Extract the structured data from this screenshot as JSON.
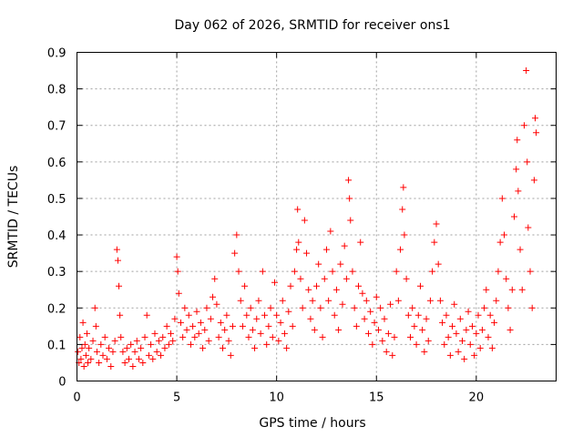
{
  "chart_data": {
    "type": "scatter",
    "title": "Day 062 of 2026, SRMTID for receiver ons1",
    "xlabel": "GPS time / hours",
    "ylabel": "SRMTID / TECUs",
    "xlim": [
      0,
      24
    ],
    "ylim": [
      0,
      0.9
    ],
    "xticks": [
      0,
      5,
      10,
      15,
      20
    ],
    "yticks": [
      0,
      0.1,
      0.2,
      0.3,
      0.4,
      0.5,
      0.6,
      0.7,
      0.8,
      0.9
    ],
    "xtick_labels": [
      "0",
      "5",
      "10",
      "15",
      "20"
    ],
    "ytick_labels": [
      "0",
      "0.1",
      "0.2",
      "0.3",
      "0.4",
      "0.5",
      "0.6",
      "0.7",
      "0.8",
      "0.9"
    ],
    "grid": true,
    "marker": "+",
    "color": "#ff0000",
    "series": [
      {
        "name": "SRMTID",
        "points": [
          [
            0.05,
            0.08
          ],
          [
            0.1,
            0.05
          ],
          [
            0.15,
            0.12
          ],
          [
            0.2,
            0.06
          ],
          [
            0.25,
            0.09
          ],
          [
            0.3,
            0.16
          ],
          [
            0.35,
            0.04
          ],
          [
            0.4,
            0.1
          ],
          [
            0.45,
            0.07
          ],
          [
            0.5,
            0.13
          ],
          [
            0.55,
            0.05
          ],
          [
            0.6,
            0.09
          ],
          [
            0.7,
            0.06
          ],
          [
            0.8,
            0.11
          ],
          [
            0.9,
            0.2
          ],
          [
            0.95,
            0.15
          ],
          [
            1.0,
            0.08
          ],
          [
            1.1,
            0.05
          ],
          [
            1.2,
            0.1
          ],
          [
            1.3,
            0.07
          ],
          [
            1.4,
            0.12
          ],
          [
            1.5,
            0.06
          ],
          [
            1.6,
            0.09
          ],
          [
            1.7,
            0.04
          ],
          [
            1.8,
            0.08
          ],
          [
            1.9,
            0.11
          ],
          [
            2.0,
            0.36
          ],
          [
            2.05,
            0.33
          ],
          [
            2.1,
            0.26
          ],
          [
            2.15,
            0.18
          ],
          [
            2.2,
            0.12
          ],
          [
            2.3,
            0.08
          ],
          [
            2.4,
            0.05
          ],
          [
            2.5,
            0.09
          ],
          [
            2.6,
            0.06
          ],
          [
            2.7,
            0.1
          ],
          [
            2.8,
            0.04
          ],
          [
            2.9,
            0.08
          ],
          [
            3.0,
            0.11
          ],
          [
            3.1,
            0.06
          ],
          [
            3.2,
            0.09
          ],
          [
            3.3,
            0.05
          ],
          [
            3.4,
            0.12
          ],
          [
            3.5,
            0.18
          ],
          [
            3.6,
            0.07
          ],
          [
            3.7,
            0.1
          ],
          [
            3.8,
            0.06
          ],
          [
            3.9,
            0.13
          ],
          [
            4.0,
            0.08
          ],
          [
            4.1,
            0.11
          ],
          [
            4.2,
            0.07
          ],
          [
            4.3,
            0.12
          ],
          [
            4.4,
            0.09
          ],
          [
            4.5,
            0.15
          ],
          [
            4.6,
            0.1
          ],
          [
            4.7,
            0.13
          ],
          [
            4.8,
            0.11
          ],
          [
            4.9,
            0.17
          ],
          [
            5.0,
            0.34
          ],
          [
            5.05,
            0.3
          ],
          [
            5.1,
            0.24
          ],
          [
            5.2,
            0.16
          ],
          [
            5.3,
            0.12
          ],
          [
            5.4,
            0.2
          ],
          [
            5.5,
            0.14
          ],
          [
            5.6,
            0.18
          ],
          [
            5.7,
            0.1
          ],
          [
            5.8,
            0.15
          ],
          [
            5.9,
            0.12
          ],
          [
            6.0,
            0.19
          ],
          [
            6.1,
            0.13
          ],
          [
            6.2,
            0.16
          ],
          [
            6.3,
            0.09
          ],
          [
            6.4,
            0.14
          ],
          [
            6.5,
            0.2
          ],
          [
            6.6,
            0.11
          ],
          [
            6.7,
            0.17
          ],
          [
            6.8,
            0.23
          ],
          [
            6.9,
            0.28
          ],
          [
            7.0,
            0.21
          ],
          [
            7.1,
            0.12
          ],
          [
            7.2,
            0.16
          ],
          [
            7.3,
            0.09
          ],
          [
            7.4,
            0.14
          ],
          [
            7.5,
            0.18
          ],
          [
            7.6,
            0.11
          ],
          [
            7.7,
            0.07
          ],
          [
            7.8,
            0.15
          ],
          [
            7.9,
            0.35
          ],
          [
            8.0,
            0.4
          ],
          [
            8.1,
            0.3
          ],
          [
            8.2,
            0.22
          ],
          [
            8.3,
            0.15
          ],
          [
            8.4,
            0.26
          ],
          [
            8.5,
            0.18
          ],
          [
            8.6,
            0.12
          ],
          [
            8.7,
            0.2
          ],
          [
            8.8,
            0.14
          ],
          [
            8.9,
            0.09
          ],
          [
            9.0,
            0.17
          ],
          [
            9.1,
            0.22
          ],
          [
            9.2,
            0.13
          ],
          [
            9.3,
            0.3
          ],
          [
            9.4,
            0.18
          ],
          [
            9.5,
            0.1
          ],
          [
            9.6,
            0.15
          ],
          [
            9.7,
            0.2
          ],
          [
            9.8,
            0.12
          ],
          [
            9.9,
            0.27
          ],
          [
            10.0,
            0.18
          ],
          [
            10.1,
            0.11
          ],
          [
            10.2,
            0.16
          ],
          [
            10.3,
            0.22
          ],
          [
            10.4,
            0.13
          ],
          [
            10.5,
            0.09
          ],
          [
            10.6,
            0.19
          ],
          [
            10.7,
            0.26
          ],
          [
            10.8,
            0.15
          ],
          [
            10.9,
            0.3
          ],
          [
            11.0,
            0.36
          ],
          [
            11.05,
            0.47
          ],
          [
            11.1,
            0.38
          ],
          [
            11.2,
            0.28
          ],
          [
            11.3,
            0.2
          ],
          [
            11.4,
            0.44
          ],
          [
            11.5,
            0.35
          ],
          [
            11.6,
            0.25
          ],
          [
            11.7,
            0.17
          ],
          [
            11.8,
            0.22
          ],
          [
            11.9,
            0.14
          ],
          [
            12.0,
            0.26
          ],
          [
            12.1,
            0.32
          ],
          [
            12.2,
            0.2
          ],
          [
            12.3,
            0.12
          ],
          [
            12.4,
            0.28
          ],
          [
            12.5,
            0.36
          ],
          [
            12.6,
            0.22
          ],
          [
            12.7,
            0.41
          ],
          [
            12.8,
            0.3
          ],
          [
            12.9,
            0.18
          ],
          [
            13.0,
            0.25
          ],
          [
            13.1,
            0.14
          ],
          [
            13.2,
            0.32
          ],
          [
            13.3,
            0.21
          ],
          [
            13.4,
            0.37
          ],
          [
            13.5,
            0.28
          ],
          [
            13.6,
            0.55
          ],
          [
            13.65,
            0.5
          ],
          [
            13.7,
            0.44
          ],
          [
            13.8,
            0.3
          ],
          [
            13.9,
            0.2
          ],
          [
            14.0,
            0.15
          ],
          [
            14.1,
            0.26
          ],
          [
            14.2,
            0.38
          ],
          [
            14.3,
            0.24
          ],
          [
            14.4,
            0.17
          ],
          [
            14.5,
            0.22
          ],
          [
            14.6,
            0.13
          ],
          [
            14.7,
            0.19
          ],
          [
            14.8,
            0.1
          ],
          [
            14.9,
            0.16
          ],
          [
            15.0,
            0.23
          ],
          [
            15.1,
            0.14
          ],
          [
            15.2,
            0.2
          ],
          [
            15.3,
            0.11
          ],
          [
            15.4,
            0.17
          ],
          [
            15.5,
            0.08
          ],
          [
            15.6,
            0.13
          ],
          [
            15.7,
            0.21
          ],
          [
            15.8,
            0.07
          ],
          [
            15.9,
            0.12
          ],
          [
            16.0,
            0.3
          ],
          [
            16.1,
            0.22
          ],
          [
            16.2,
            0.36
          ],
          [
            16.3,
            0.47
          ],
          [
            16.35,
            0.53
          ],
          [
            16.4,
            0.4
          ],
          [
            16.5,
            0.28
          ],
          [
            16.6,
            0.18
          ],
          [
            16.7,
            0.12
          ],
          [
            16.8,
            0.2
          ],
          [
            16.9,
            0.15
          ],
          [
            17.0,
            0.1
          ],
          [
            17.1,
            0.18
          ],
          [
            17.2,
            0.26
          ],
          [
            17.3,
            0.14
          ],
          [
            17.4,
            0.08
          ],
          [
            17.5,
            0.17
          ],
          [
            17.6,
            0.11
          ],
          [
            17.7,
            0.22
          ],
          [
            17.8,
            0.3
          ],
          [
            17.9,
            0.38
          ],
          [
            18.0,
            0.43
          ],
          [
            18.1,
            0.32
          ],
          [
            18.2,
            0.22
          ],
          [
            18.3,
            0.16
          ],
          [
            18.4,
            0.1
          ],
          [
            18.5,
            0.18
          ],
          [
            18.6,
            0.12
          ],
          [
            18.7,
            0.07
          ],
          [
            18.8,
            0.15
          ],
          [
            18.9,
            0.21
          ],
          [
            19.0,
            0.13
          ],
          [
            19.1,
            0.08
          ],
          [
            19.2,
            0.17
          ],
          [
            19.3,
            0.11
          ],
          [
            19.4,
            0.06
          ],
          [
            19.5,
            0.14
          ],
          [
            19.6,
            0.19
          ],
          [
            19.7,
            0.1
          ],
          [
            19.8,
            0.15
          ],
          [
            19.9,
            0.07
          ],
          [
            20.0,
            0.13
          ],
          [
            20.1,
            0.18
          ],
          [
            20.2,
            0.09
          ],
          [
            20.3,
            0.14
          ],
          [
            20.4,
            0.2
          ],
          [
            20.5,
            0.25
          ],
          [
            20.6,
            0.12
          ],
          [
            20.7,
            0.18
          ],
          [
            20.8,
            0.09
          ],
          [
            20.9,
            0.16
          ],
          [
            21.0,
            0.22
          ],
          [
            21.1,
            0.3
          ],
          [
            21.2,
            0.38
          ],
          [
            21.3,
            0.5
          ],
          [
            21.4,
            0.4
          ],
          [
            21.5,
            0.28
          ],
          [
            21.6,
            0.2
          ],
          [
            21.7,
            0.14
          ],
          [
            21.8,
            0.25
          ],
          [
            21.9,
            0.45
          ],
          [
            22.0,
            0.58
          ],
          [
            22.05,
            0.66
          ],
          [
            22.1,
            0.52
          ],
          [
            22.2,
            0.36
          ],
          [
            22.3,
            0.25
          ],
          [
            22.4,
            0.7
          ],
          [
            22.5,
            0.85
          ],
          [
            22.55,
            0.6
          ],
          [
            22.6,
            0.42
          ],
          [
            22.7,
            0.3
          ],
          [
            22.8,
            0.2
          ],
          [
            22.9,
            0.55
          ],
          [
            22.95,
            0.72
          ],
          [
            23.0,
            0.68
          ]
        ]
      }
    ]
  }
}
